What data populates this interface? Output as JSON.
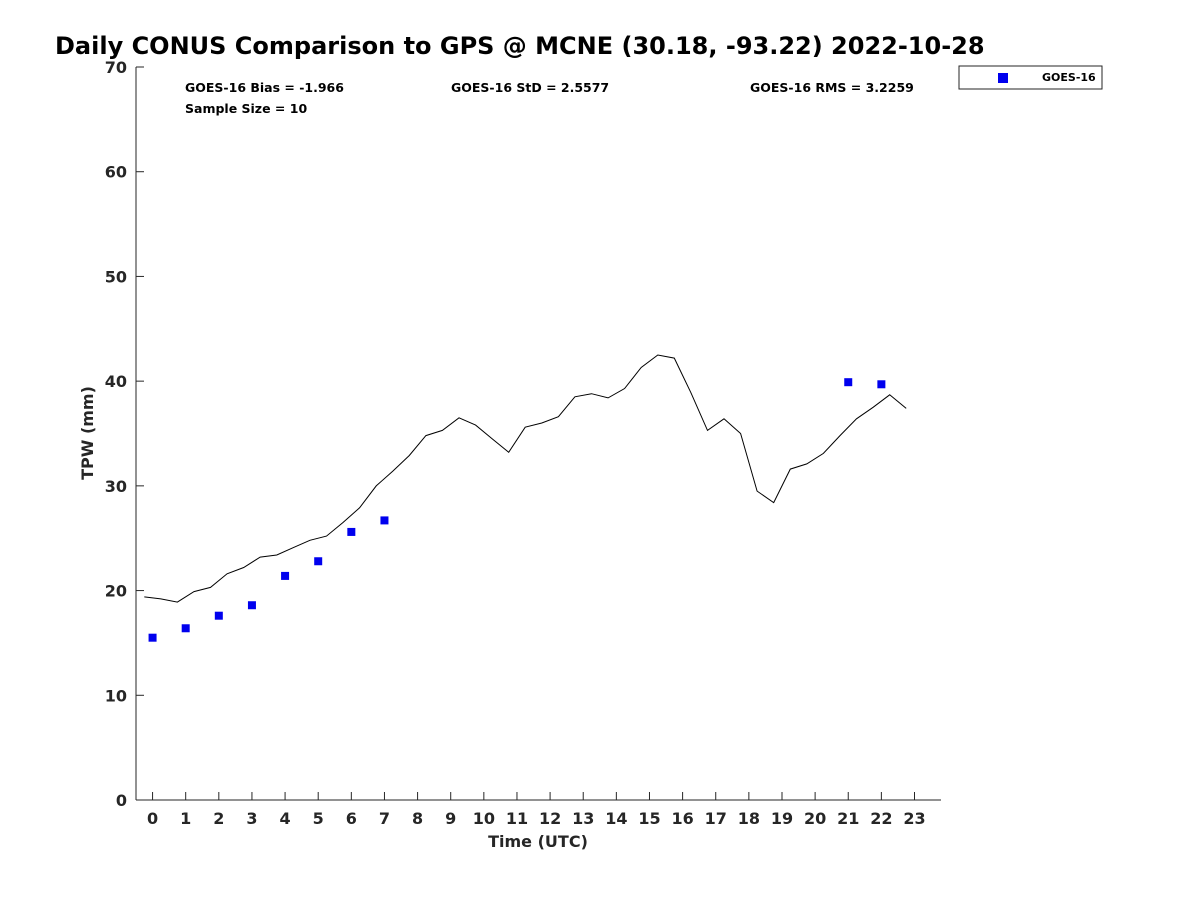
{
  "title": "Daily CONUS Comparison to GPS @ MCNE (30.18, -93.22) 2022-10-28",
  "stats": {
    "bias": "GOES-16 Bias = -1.966",
    "std": "GOES-16 StD = 2.5577",
    "rms": "GOES-16 RMS = 3.2259",
    "sample": "Sample Size = 10"
  },
  "colors": {
    "goes": "#0000ee",
    "gps_line": "#000000",
    "axis": "#262626"
  },
  "chart_data": {
    "type": "scatter",
    "xlabel": "Time (UTC)",
    "ylabel": "TPW (mm)",
    "xlim": [
      -0.5,
      23.8
    ],
    "ylim": [
      0,
      70
    ],
    "x_ticks": [
      "0",
      "1",
      "2",
      "3",
      "4",
      "5",
      "6",
      "7",
      "8",
      "9",
      "10",
      "11",
      "12",
      "13",
      "14",
      "15",
      "16",
      "17",
      "18",
      "19",
      "20",
      "21",
      "22",
      "23"
    ],
    "y_ticks": [
      "0",
      "10",
      "20",
      "30",
      "40",
      "50",
      "60",
      "70"
    ],
    "legend": {
      "position": "top-right",
      "entries": [
        "GOES-16"
      ]
    },
    "grid": false,
    "series": [
      {
        "name": "GOES-16",
        "kind": "markers",
        "marker": "square",
        "x": [
          0,
          1,
          2,
          3,
          4,
          5,
          6,
          7,
          21,
          22
        ],
        "y": [
          15.5,
          16.4,
          17.6,
          18.6,
          21.4,
          22.8,
          25.6,
          26.7,
          39.9,
          39.7
        ]
      },
      {
        "kind": "line",
        "x": [
          -0.25,
          0.25,
          0.75,
          1.25,
          1.75,
          2.25,
          2.75,
          3.25,
          3.75,
          4.25,
          4.75,
          5.25,
          5.75,
          6.25,
          6.75,
          7.25,
          7.75,
          8.25,
          8.75,
          9.25,
          9.75,
          10.25,
          10.75,
          11.25,
          11.75,
          12.25,
          12.75,
          13.25,
          13.75,
          14.25,
          14.75,
          15.25,
          15.75,
          16.25,
          16.75,
          17.25,
          17.75,
          18.25,
          18.75,
          19.25,
          19.75,
          20.25,
          20.75,
          21.25,
          21.75,
          22.25,
          22.75
        ],
        "y": [
          19.4,
          19.2,
          18.9,
          19.9,
          20.3,
          21.6,
          22.2,
          23.2,
          23.4,
          24.1,
          24.8,
          25.2,
          26.5,
          27.9,
          30.0,
          31.4,
          32.9,
          34.8,
          35.3,
          36.5,
          35.8,
          34.5,
          33.2,
          35.6,
          36.0,
          36.6,
          38.5,
          38.8,
          38.4,
          39.3,
          41.3,
          42.5,
          42.2,
          38.9,
          35.3,
          36.4,
          35.0,
          29.5,
          28.4,
          31.6,
          32.1,
          33.1,
          34.8,
          36.4,
          37.5,
          38.7,
          37.4
        ]
      }
    ]
  }
}
